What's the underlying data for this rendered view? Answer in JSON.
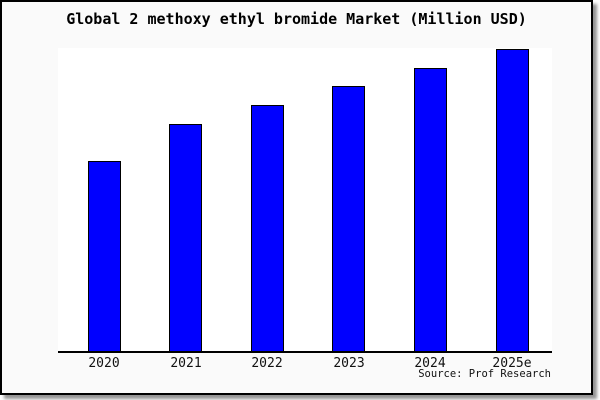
{
  "title": "Global 2 methoxy ethyl bromide Market (Million USD)",
  "source": "Source: Prof Research",
  "colors": {
    "bar_fill": "#0000ff",
    "bar_border": "#000000",
    "canvas_background": "#fafafa",
    "plot_background": "#ffffff",
    "axis": "#000000",
    "frame_border": "#000000"
  },
  "chart_data": {
    "type": "bar",
    "title": "Global 2 methoxy ethyl bromide Market (Million USD)",
    "categories": [
      "2020",
      "2021",
      "2022",
      "2023",
      "2024",
      "2025e"
    ],
    "values": [
      62.8,
      75.1,
      81.4,
      87.7,
      93.7,
      100
    ],
    "values_note": "no y-axis ticks shown; values estimated from bar heights, scaled so 2025e = 100",
    "xlabel": "",
    "ylabel": "",
    "ylim": [
      0,
      101
    ],
    "grid": false,
    "legend": "none",
    "annotations": [
      "Source: Prof Research"
    ]
  }
}
